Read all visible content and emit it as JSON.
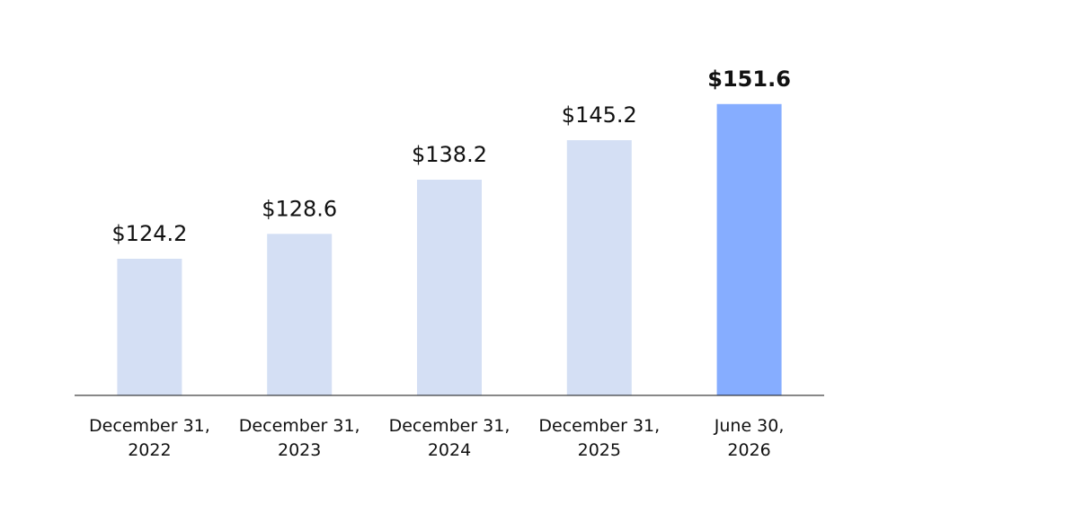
{
  "chart_data": {
    "type": "bar",
    "categories": [
      "December 31,\n2022",
      "December 31,\n2023",
      "December 31,\n2024",
      "December 31,\n2025",
      "June 30,\n2026"
    ],
    "values": [
      124.2,
      128.6,
      138.2,
      145.2,
      151.6
    ],
    "value_labels": [
      "$124.2",
      "$128.6",
      "$138.2",
      "$145.2",
      "$151.6"
    ],
    "colors": [
      "#d4dff4",
      "#d4dff4",
      "#d4dff4",
      "#d4dff4",
      "#86adff"
    ],
    "bold_labels": [
      false,
      false,
      false,
      false,
      true
    ],
    "ylim": [
      100,
      160
    ]
  }
}
